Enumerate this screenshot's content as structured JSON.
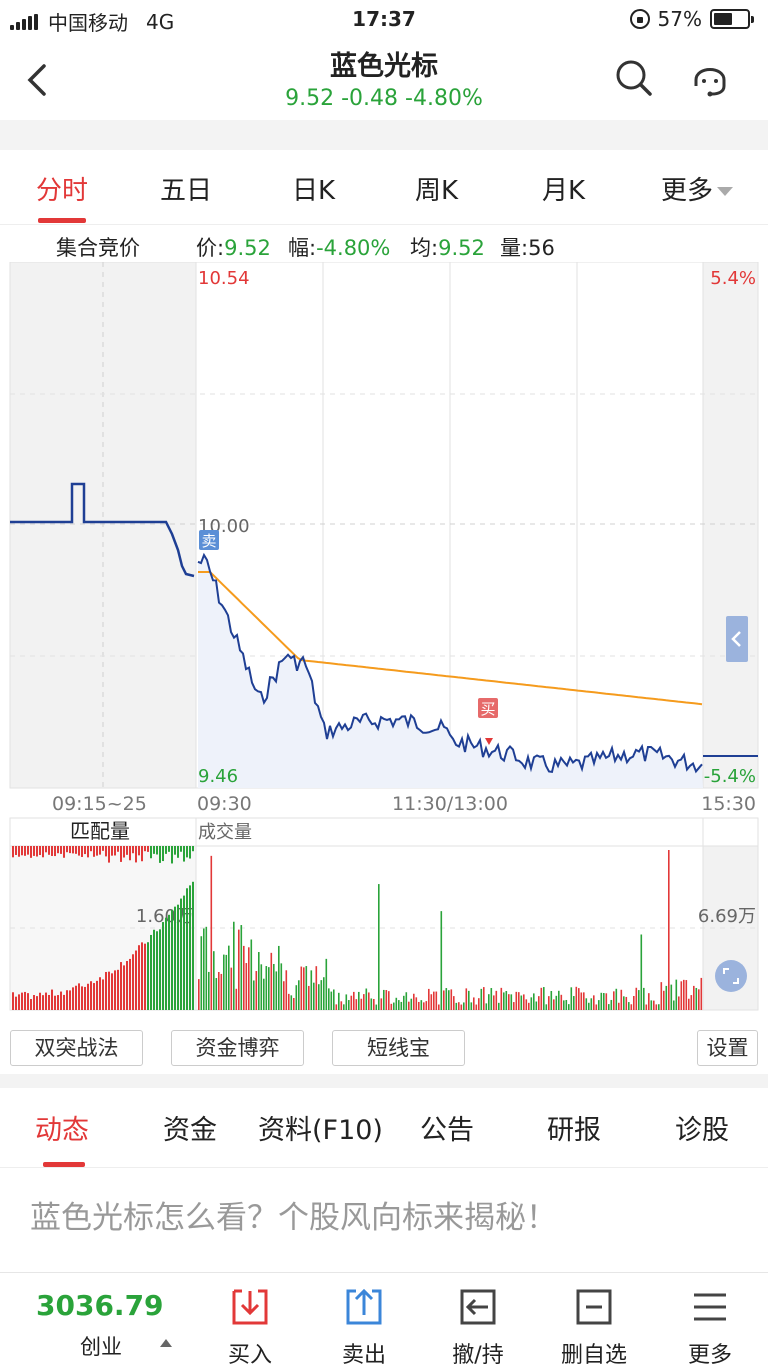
{
  "status_bar": {
    "carrier": "中国移动",
    "network": "4G",
    "time": "17:37",
    "battery": "57%",
    "battery_level": 0.57
  },
  "header": {
    "title": "蓝色光标",
    "quote": "9.52 -0.48 -4.80%"
  },
  "chart_tabs": [
    "分时",
    "五日",
    "日K",
    "周K",
    "月K",
    "更多"
  ],
  "info": {
    "auction_label": "集合竞价",
    "price_label": "价:",
    "price": "9.52",
    "change_label": "幅:",
    "change": "-4.80%",
    "avg_label": "均:",
    "avg": "9.52",
    "volume_label": "量:",
    "volume": "56"
  },
  "chart": {
    "price_high": "10.54",
    "price_prev_close": "10.00",
    "price_low": "9.46",
    "pct_high": "5.4%",
    "pct_low": "-5.4%",
    "time_auction": "09:15~25",
    "time_open": "09:30",
    "time_mid": "11:30/13:00",
    "time_close": "15:30",
    "sell_marker": "卖",
    "buy_marker": "买",
    "match_volume_label": "匹配量",
    "trade_volume_label": "成交量",
    "match_volume_max": "1.60万",
    "trade_volume_max": "6.69万",
    "colors": {
      "price_line": "#1f3f94",
      "avg_line": "#f59b1d",
      "up": "#e23838",
      "down": "#2aa33a"
    }
  },
  "tools": [
    "双突战法",
    "资金博弈",
    "短线宝",
    "设置"
  ],
  "news_tabs": [
    "动态",
    "资金",
    "资料(F10)",
    "公告",
    "研报",
    "诊股"
  ],
  "headline": "蓝色光标怎么看？个股风向标来揭秘！",
  "bottom": {
    "index_value": "3036.79",
    "index_name": "创业",
    "actions": [
      "买入",
      "卖出",
      "撤/持",
      "删自选",
      "更多"
    ]
  }
}
